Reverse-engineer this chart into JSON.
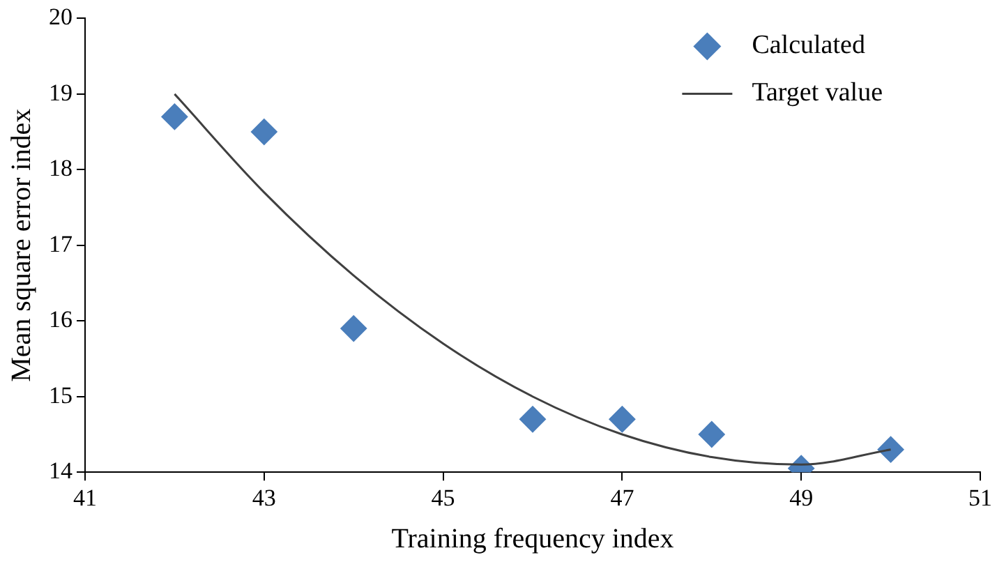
{
  "chart_data": {
    "type": "scatter",
    "xlabel": "Training frequency index",
    "ylabel": "Mean square error index",
    "xlim": [
      41,
      51
    ],
    "xticks": [
      41,
      43,
      45,
      47,
      49,
      51
    ],
    "ylim": [
      14,
      20
    ],
    "yticks": [
      14,
      15,
      16,
      17,
      18,
      19,
      20
    ],
    "grid": false,
    "legend": "top right",
    "series": [
      {
        "name": "Calculated",
        "marker": "diamond",
        "color": "#4a7ebb",
        "x": [
          42,
          43,
          44,
          46,
          47,
          48,
          49,
          50
        ],
        "values": [
          18.7,
          18.5,
          15.9,
          14.7,
          14.7,
          14.5,
          14.05,
          14.3
        ]
      },
      {
        "name": "Target value",
        "type": "line",
        "marker": "none",
        "line_style": "solid",
        "color": "#404040",
        "x": [
          42,
          43,
          44,
          45,
          46,
          47,
          48,
          49,
          50
        ],
        "values": [
          19.0,
          17.7,
          16.6,
          15.7,
          15.0,
          14.5,
          14.2,
          14.1,
          14.3
        ]
      }
    ]
  }
}
